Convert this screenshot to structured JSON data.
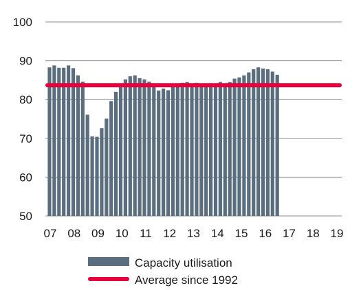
{
  "chart_data": {
    "type": "bar",
    "title": "",
    "xlabel": "",
    "ylabel": "",
    "ylim": [
      50,
      100
    ],
    "yticks": [
      "100",
      "90",
      "80",
      "70",
      "60",
      "50"
    ],
    "xticks": [
      "07",
      "08",
      "09",
      "10",
      "11",
      "12",
      "13",
      "14",
      "15",
      "16",
      "17",
      "18",
      "19"
    ],
    "grid": "horizontal",
    "legend_position": "bottom",
    "series": [
      {
        "name": "Capacity utilisation",
        "type": "bar",
        "color": "#5b6e80",
        "values": [
          88.3,
          88.8,
          88.2,
          88.2,
          88.8,
          88.1,
          86.2,
          84.6,
          76.1,
          70.5,
          70.4,
          72.6,
          75.1,
          79.6,
          82.0,
          83.6,
          85.2,
          86.0,
          86.2,
          85.5,
          85.2,
          84.6,
          84.0,
          82.3,
          82.8,
          82.4,
          83.4,
          83.8,
          84.3,
          84.5,
          84.2,
          84.3,
          83.9,
          84.2,
          84.2,
          84.0,
          84.5,
          84.2,
          84.5,
          85.4,
          85.7,
          86.2,
          87.0,
          87.8,
          88.3,
          88.0,
          87.8,
          87.2,
          86.4
        ]
      },
      {
        "name": "Average since 1992",
        "type": "line",
        "color": "#e5003d",
        "value": 83.7
      }
    ]
  }
}
